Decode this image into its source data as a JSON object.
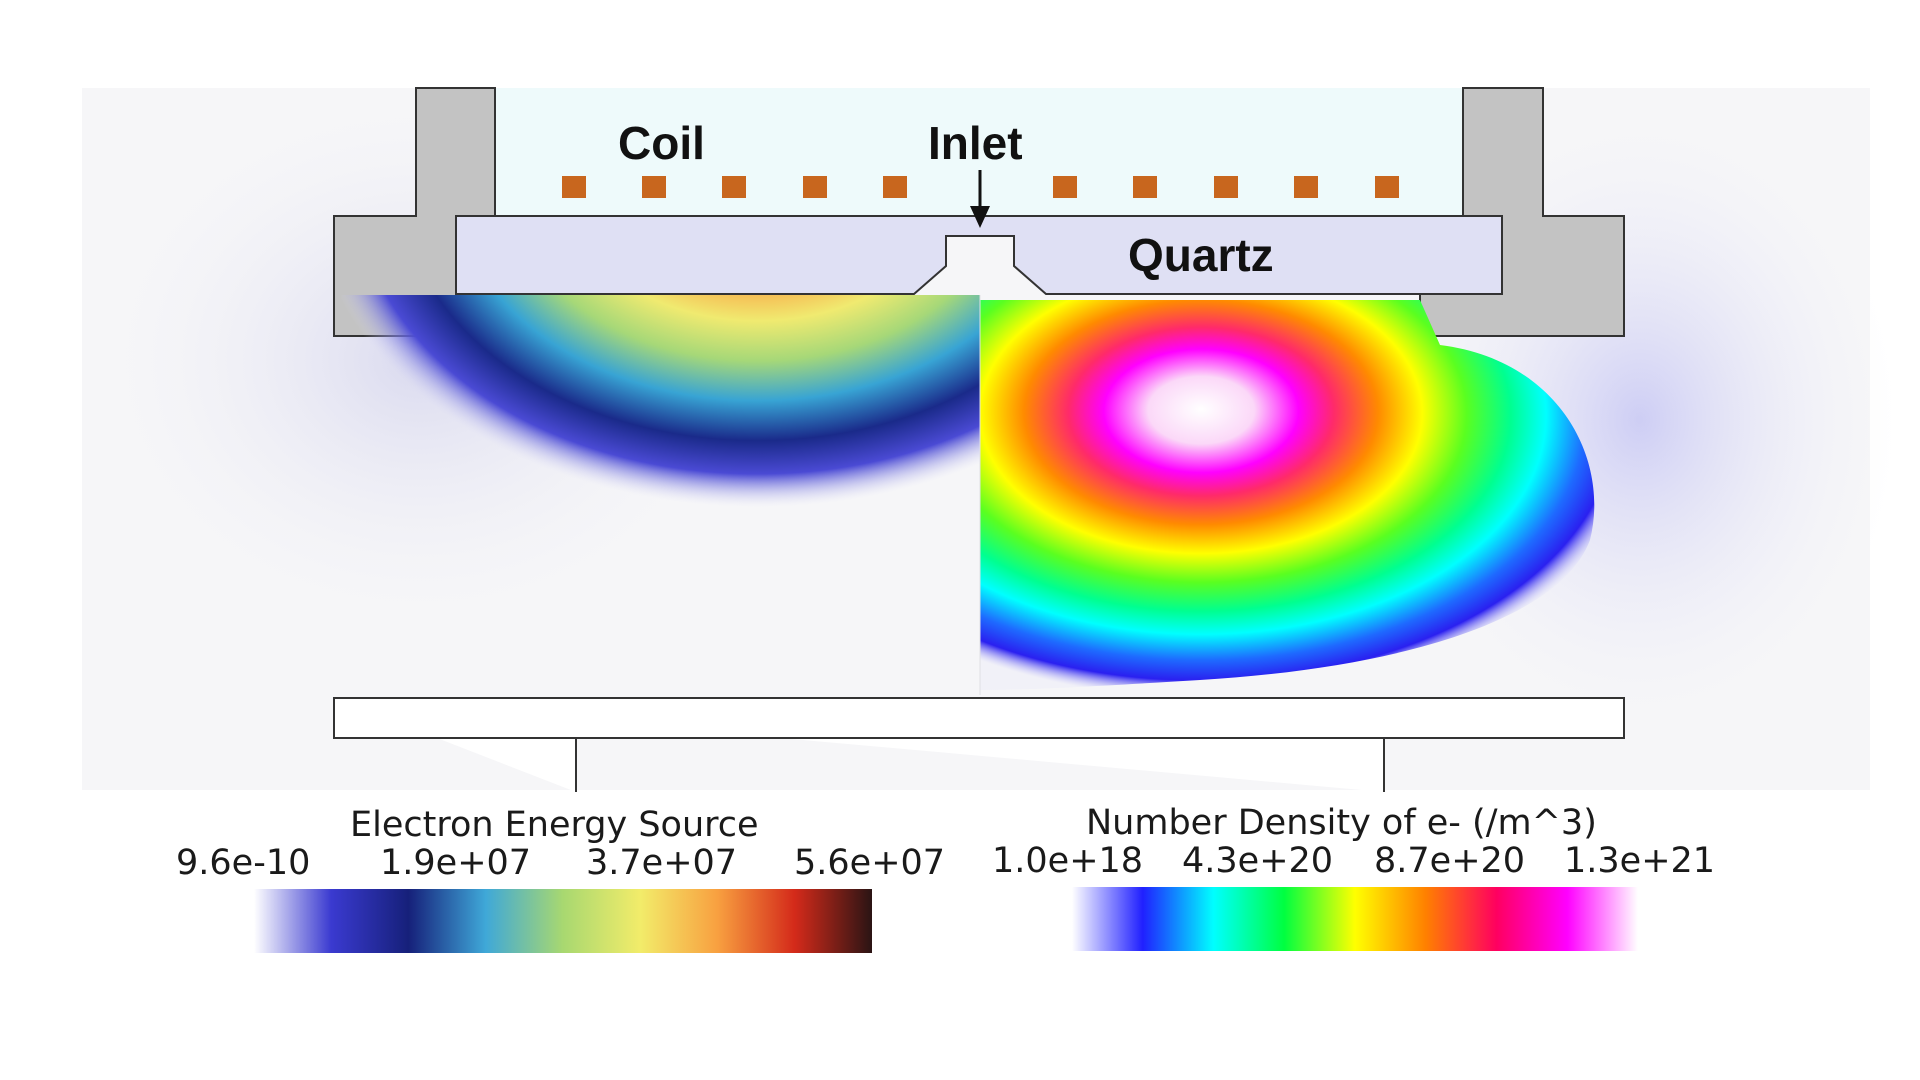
{
  "labels": {
    "coil": "Coil",
    "inlet": "Inlet",
    "quartz": "Quartz"
  },
  "legends": [
    {
      "title": "Electron Energy Source",
      "ticks": [
        "9.6e-10",
        "1.9e+07",
        "3.7e+07",
        "5.6e+07"
      ],
      "colors": [
        "#ffffff",
        "#3a3ad0",
        "#16207a",
        "#3fa8d8",
        "#a8d870",
        "#f2ec6a",
        "#f8a040",
        "#d42a1a",
        "#2a1414"
      ]
    },
    {
      "title": "Number Density of e- (/m^3)",
      "ticks": [
        "1.0e+18",
        "4.3e+20",
        "8.7e+20",
        "1.3e+21"
      ],
      "colors": [
        "#ffffff",
        "#2020ff",
        "#00ffff",
        "#00ff40",
        "#ffff00",
        "#ff8000",
        "#ff0060",
        "#ff00ff",
        "#ffffff"
      ]
    }
  ],
  "colors": {
    "wall": "#c3c3c3",
    "quartz": "#dfe0f4",
    "coil": "#c8661e",
    "chamber_bg": "#f6f6f8",
    "top_region": "#eefafb"
  }
}
